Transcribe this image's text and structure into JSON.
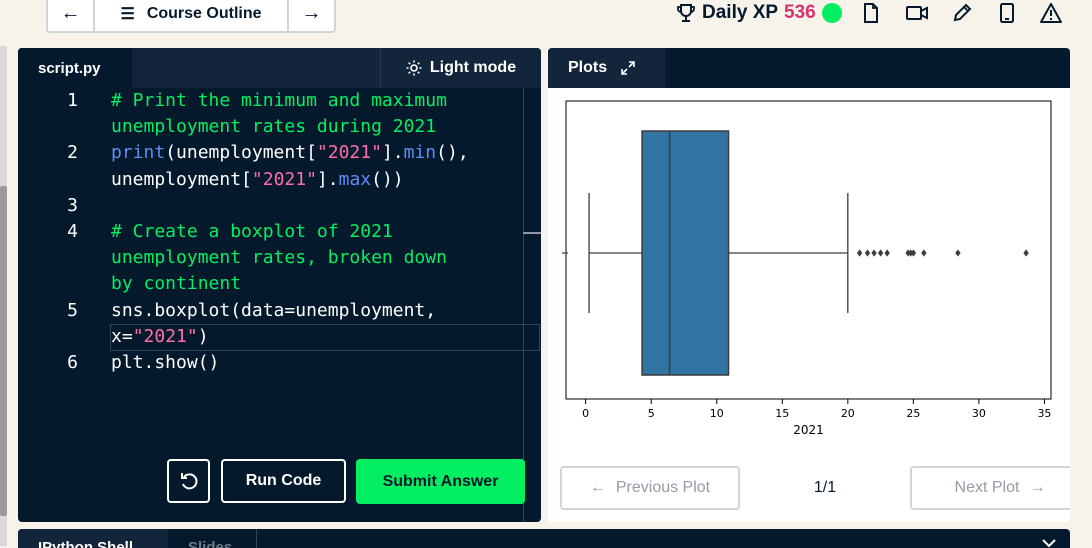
{
  "topbar": {
    "back_icon": "←",
    "outline_icon": "☰",
    "outline_label": "Course Outline",
    "forward_icon": "→",
    "xp_label": "Daily XP",
    "xp_value": "536"
  },
  "editor": {
    "tab_label": "script.py",
    "light_mode_label": "Light mode",
    "lines": [
      {
        "n": "1",
        "segments": [
          {
            "t": "# Print the minimum and maximum",
            "c": "cm"
          }
        ]
      },
      {
        "n": "",
        "segments": [
          {
            "t": "unemployment rates during 2021",
            "c": "cm"
          }
        ]
      },
      {
        "n": "2",
        "segments": [
          {
            "t": "print",
            "c": "fn"
          },
          {
            "t": "(unemployment[",
            "c": "pl"
          },
          {
            "t": "\"2021\"",
            "c": "st"
          },
          {
            "t": "].",
            "c": "pl"
          },
          {
            "t": "min",
            "c": "fn"
          },
          {
            "t": "(),",
            "c": "pl"
          }
        ]
      },
      {
        "n": "",
        "segments": [
          {
            "t": "unemployment[",
            "c": "pl"
          },
          {
            "t": "\"2021\"",
            "c": "st"
          },
          {
            "t": "].",
            "c": "pl"
          },
          {
            "t": "max",
            "c": "fn"
          },
          {
            "t": "())",
            "c": "pl"
          }
        ]
      },
      {
        "n": "3",
        "segments": []
      },
      {
        "n": "4",
        "segments": [
          {
            "t": "# Create a boxplot of 2021",
            "c": "cm"
          }
        ]
      },
      {
        "n": "",
        "segments": [
          {
            "t": "unemployment rates, broken down",
            "c": "cm"
          }
        ]
      },
      {
        "n": "",
        "segments": [
          {
            "t": "by continent",
            "c": "cm"
          }
        ]
      },
      {
        "n": "5",
        "segments": [
          {
            "t": "sns.boxplot(data=unemployment,",
            "c": "pl"
          }
        ]
      },
      {
        "n": "",
        "segments": [
          {
            "t": "x=",
            "c": "pl"
          },
          {
            "t": "\"2021\"",
            "c": "st"
          },
          {
            "t": ")",
            "c": "pl"
          }
        ]
      },
      {
        "n": "6",
        "segments": [
          {
            "t": "plt.show()",
            "c": "pl"
          }
        ]
      }
    ],
    "run_label": "Run Code",
    "submit_label": "Submit Answer"
  },
  "plots": {
    "tab_label": "Plots",
    "prev_label": "Previous Plot",
    "next_label": "Next Plot",
    "page_indicator": "1/1"
  },
  "chart_data": {
    "type": "box",
    "xlabel": "2021",
    "xlim": [
      -1.5,
      35.5
    ],
    "x_ticks": [
      0,
      5,
      10,
      15,
      20,
      25,
      30,
      35
    ],
    "whisker_low": 0.26,
    "q1": 4.3,
    "median": 6.4,
    "q3": 10.9,
    "whisker_high": 20.0,
    "outliers": [
      20.9,
      21.5,
      22.0,
      22.5,
      23.0,
      24.6,
      24.8,
      25.0,
      25.8,
      28.4,
      33.6
    ],
    "box_color": "#3274a1"
  },
  "shell": {
    "tab_label": "IPython Shell",
    "slides_label": "Slides"
  }
}
